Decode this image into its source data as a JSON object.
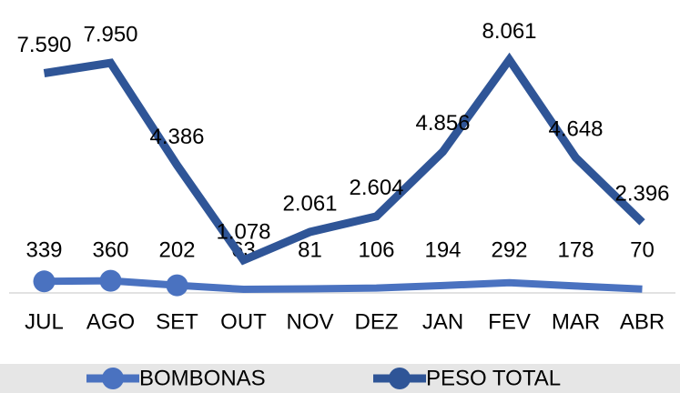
{
  "chart_data": {
    "type": "line",
    "categories": [
      "JUL",
      "AGO",
      "SET",
      "OUT",
      "NOV",
      "DEZ",
      "JAN",
      "FEV",
      "MAR",
      "ABR"
    ],
    "series": [
      {
        "name": "BOMBONAS",
        "color": "#4a72c0",
        "values": [
          339,
          360,
          202,
          63,
          81,
          106,
          194,
          292,
          178,
          70
        ],
        "markers": [
          0,
          1,
          2
        ]
      },
      {
        "name": "PESO TOTAL",
        "color": "#2f5597",
        "values": [
          7590,
          7950,
          4386,
          1078,
          2061,
          2604,
          4856,
          8061,
          4648,
          2396
        ],
        "value_labels": [
          "7.590",
          "7.950",
          "4.386",
          "1.078",
          "2.061",
          "2.604",
          "4.856",
          "8.061",
          "4.648",
          "2.396"
        ]
      }
    ],
    "ylim": [
      0,
      9000
    ],
    "legend": "bottom"
  }
}
